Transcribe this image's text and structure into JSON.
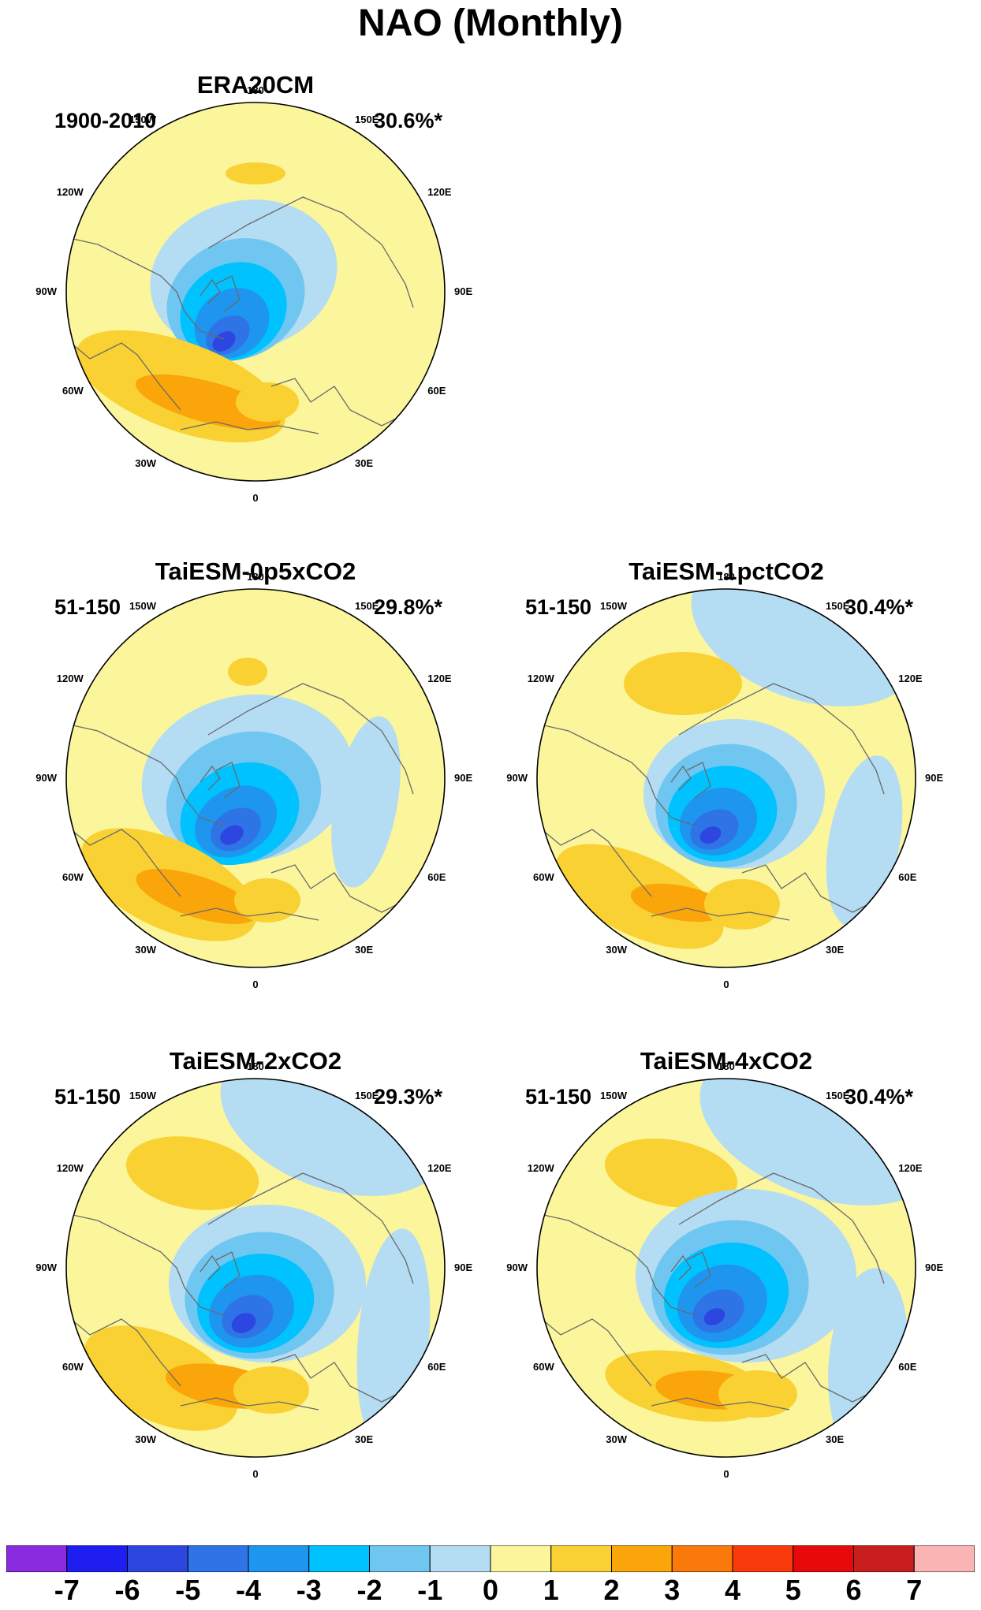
{
  "title": "NAO (Monthly)",
  "chart_data": [
    {
      "type": "heatmap",
      "title": "ERA20CM",
      "period": "1900-2010",
      "variance": "30.6%*",
      "pattern": 0
    },
    {
      "type": "heatmap",
      "title": "TaiESM-0p5xCO2",
      "period": "51-150",
      "variance": "29.8%*",
      "pattern": 1
    },
    {
      "type": "heatmap",
      "title": "TaiESM-1pctCO2",
      "period": "51-150",
      "variance": "30.4%*",
      "pattern": 2
    },
    {
      "type": "heatmap",
      "title": "TaiESM-2xCO2",
      "period": "51-150",
      "variance": "29.3%*",
      "pattern": 3
    },
    {
      "type": "heatmap",
      "title": "TaiESM-4xCO2",
      "period": "51-150",
      "variance": "30.4%*",
      "pattern": 4
    }
  ],
  "lon_labels": [
    "180",
    "150E",
    "120E",
    "90E",
    "60E",
    "30E",
    "0",
    "30W",
    "60W",
    "90W",
    "120W",
    "150W"
  ],
  "colorbar": {
    "ticks": [
      "-7",
      "-6",
      "-5",
      "-4",
      "-3",
      "-2",
      "-1",
      "0",
      "1",
      "2",
      "3",
      "4",
      "5",
      "6",
      "7"
    ],
    "colors": [
      "#8b2be0",
      "#1e1ef0",
      "#2e46e0",
      "#2e74e6",
      "#1e96f0",
      "#00c2ff",
      "#6fc6f0",
      "#b4dcf2",
      "#fbf59c",
      "#fad132",
      "#faa50a",
      "#f9790a",
      "#f93a0a",
      "#e80a0a",
      "#c81e1e",
      "#fab4b4"
    ]
  }
}
